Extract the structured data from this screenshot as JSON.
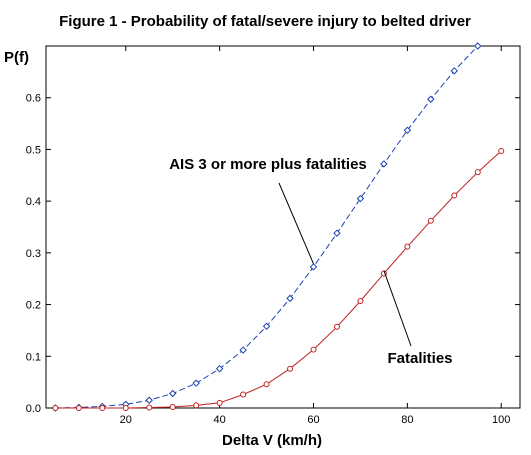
{
  "chart_data": {
    "type": "line",
    "title": "Figure 1 - Probability of fatal/severe injury to belted driver",
    "xlabel": "Delta V (km/h)",
    "ylabel": "P(f)",
    "xlim": [
      3,
      104
    ],
    "ylim": [
      0,
      0.7
    ],
    "x_ticks": [
      20,
      40,
      60,
      80,
      100
    ],
    "y_ticks": [
      0.0,
      0.1,
      0.2,
      0.3,
      0.4,
      0.5,
      0.6
    ],
    "x_tick_labels": [
      "20",
      "40",
      "60",
      "80",
      "100"
    ],
    "y_tick_labels": [
      "0.0",
      "0.1",
      "0.2",
      "0.3",
      "0.4",
      "0.5",
      "0.6"
    ],
    "grid": false,
    "series": [
      {
        "name": "AIS 3 or more plus fatalities",
        "color": "#1a3fb0",
        "line_style": "dashed",
        "marker": "diamond",
        "x": [
          5,
          10,
          15,
          20,
          25,
          30,
          35,
          40,
          45,
          50,
          55,
          60,
          65,
          70,
          75,
          80,
          85,
          90,
          95
        ],
        "y": [
          0.0,
          0.001,
          0.003,
          0.007,
          0.015,
          0.028,
          0.048,
          0.076,
          0.112,
          0.158,
          0.212,
          0.273,
          0.338,
          0.405,
          0.472,
          0.537,
          0.597,
          0.652,
          0.7
        ]
      },
      {
        "name": "Fatalities",
        "color": "#c02020",
        "line_style": "solid",
        "marker": "circle",
        "x": [
          5,
          10,
          15,
          20,
          25,
          30,
          35,
          40,
          45,
          50,
          55,
          60,
          65,
          70,
          75,
          80,
          85,
          90,
          95,
          100
        ],
        "y": [
          0.0,
          0.0,
          0.0,
          0.0,
          0.001,
          0.002,
          0.005,
          0.01,
          0.026,
          0.046,
          0.076,
          0.113,
          0.157,
          0.207,
          0.26,
          0.312,
          0.362,
          0.411,
          0.456,
          0.497
        ]
      }
    ],
    "annotations": [
      {
        "text": "AIS 3 or more plus fatalities",
        "series": 0,
        "at_x": 60
      },
      {
        "text": "Fatalities",
        "series": 1,
        "at_x": 75
      }
    ]
  }
}
